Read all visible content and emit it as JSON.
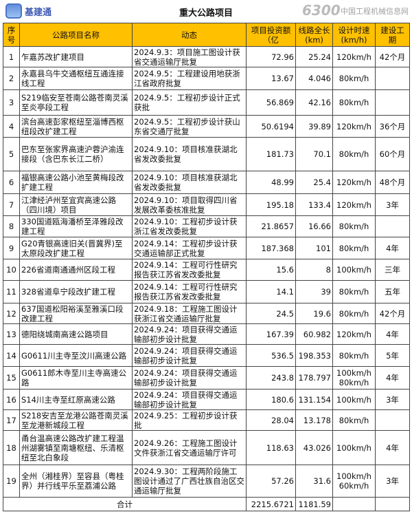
{
  "title": "重大公路项目",
  "headers": [
    "序号",
    "公路项目名称",
    "动态",
    "项目投资额（亿",
    "线路全长(km)",
    "设计时速(km/h)",
    "建设工期"
  ],
  "rows": [
    [
      "1",
      "乍嘉苏改扩建项目",
      "2024.9.3：项目施工图设计获省交通运输厅批复",
      "72.96",
      "25.24",
      "120km/h",
      "42个月"
    ],
    [
      "2",
      "永嘉县乌牛交通枢纽互通连接线工程",
      "2024.9.5：工程建设用地获浙江省政府批复",
      "13.67",
      "4.046",
      "80km/h",
      ""
    ],
    [
      "3",
      "S219临安至苍南公路苍南灵溪至炎亭段工程",
      "2024.9.5：工程初步设计正式获批",
      "56.869",
      "42.16",
      "80km/h",
      ""
    ],
    [
      "4",
      "滨台高速彭家枢纽至淄博西枢纽段改扩建工程",
      "2024.9.5：工程初步设计获山东省交通厅批复",
      "50.6194",
      "39.89",
      "120km/h",
      "36个月"
    ],
    [
      "5",
      "巴东至张家界高速沪蓉沪渝连接段（含巴东长江二桥）",
      "2024.9.10：项目核准获湖北省发改委批复",
      "181.73",
      "70.1",
      "80km/h",
      "60个月"
    ],
    [
      "6",
      "福银高速公路小池至黄梅段改扩建工程",
      "2024.9.10：项目核准获湖北省发改委批复",
      "48.99",
      "25.4",
      "120km/h",
      "48个月"
    ],
    [
      "7",
      "江津经泸州至宜宾高速公路（四川境）项目",
      "2024.9.10：项目取得四川省发展改革委核准批复",
      "195.18",
      "133.4",
      "120km/h",
      "3年"
    ],
    [
      "8",
      "330国道瓯海潘桥至泽雅段改建工程",
      "2024.9.10：工程初步设计获浙江省发改委批复",
      "21.8657",
      "16.66",
      "80km/h",
      ""
    ],
    [
      "9",
      "G20青银高速旧关(晋冀界)至太原段改扩建工程",
      "2024.9.14：工程初步设计获交通运输部正式批复",
      "187.368",
      "101",
      "80km/h",
      "4年"
    ],
    [
      "10",
      "226省道南通通州区段工程",
      "2024.9.14：工程可行性研究报告获江苏省发改委批复",
      "15.6",
      "8",
      "100km/h",
      "三年"
    ],
    [
      "11",
      "328省道阜宁段改扩建工程",
      "2024.9.14：工程可行性研究报告获江苏省发改委批复",
      "14.1",
      "39",
      "80km/h",
      "五年"
    ],
    [
      "12",
      "637国道松阳裕溪至雅溪口段改建工程",
      "2024.9.18：工程施工图设计获浙江省交通运输厅批复",
      "24.5",
      "19.6",
      "80km/h",
      "42个月"
    ],
    [
      "13",
      "德阳绕城南高速公路项目",
      "2024.9.24：项目获得交通运输部初步设计批复",
      "167.39",
      "60.982",
      "120km/h",
      "4年"
    ],
    [
      "14",
      "G0611川主寺至汶川高速公路",
      "2024.9.24：项目获得交通运输部初步设计批复",
      "536.5",
      "198.353",
      "80km/h",
      "5年"
    ],
    [
      "15",
      "G0611郎木寺至川主寺高速公路",
      "2024.9.24：项目获得交通运输部初步设计批复",
      "243.8",
      "178.797",
      "100km/h 80km/h",
      "4年"
    ],
    [
      "16",
      "S14川主寺至红原高速公路",
      "2024.9.24：项目获得交通运输部初步设计批复",
      "180.6",
      "131.154",
      "100km/h",
      "3年"
    ],
    [
      "17",
      "S218安吉至龙港公路苍南灵溪至龙港新城段工程",
      "2024.9.25：工程初步设计获批",
      "28.04",
      "13.178",
      "80km/h",
      ""
    ],
    [
      "18",
      "甬台温高速公路改扩建工程温州湖雾镇至南塘枢纽、乐清枢纽至北白象段",
      "2024.9.26：工程施工图设计文件获浙江省交通运输厅许可",
      "118.63",
      "43.026",
      "100km/h",
      "4年"
    ],
    [
      "19",
      "全州（湘桂界）至容县（粤桂界）并行线平乐至荔浦公路",
      "2024.9.30：工程两阶段施工图设计通过了广西壮族自治区交通运输厅批复",
      "57.26",
      "31.6",
      "100km/h 60km/h",
      "3年"
    ]
  ],
  "total": {
    "label": "合计",
    "investment": "2215.6721",
    "length": "1181.59"
  },
  "watermarks": {
    "logo_text": "基建通",
    "site_number": "6300",
    "site_name": "中国工程机械信息网"
  },
  "colors": {
    "header_bg": "#FFC000",
    "border": "#444444"
  }
}
